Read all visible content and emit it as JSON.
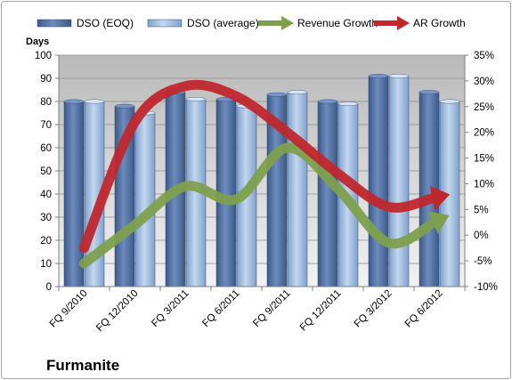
{
  "chart_data": {
    "type": "bar",
    "title": "Furmanite",
    "ylabel": "Days",
    "categories": [
      "FQ 9/2010",
      "FQ 12/2010",
      "FQ 3/2011",
      "FQ 6/2011",
      "FQ 9/2011",
      "FQ 12/2011",
      "FQ 3/2012",
      "FQ 6/2012"
    ],
    "ylim": [
      0,
      100
    ],
    "yticks": [
      "0",
      "10",
      "20",
      "30",
      "40",
      "50",
      "60",
      "70",
      "80",
      "90",
      "100"
    ],
    "y2lim": [
      -10,
      35
    ],
    "y2ticks": [
      "-10%",
      "-5%",
      "0%",
      "5%",
      "10%",
      "15%",
      "20%",
      "25%",
      "30%",
      "35%"
    ],
    "grid": true,
    "legend_position": "top",
    "series": [
      {
        "name": "DSO (EOQ)",
        "kind": "bar",
        "axis": "left",
        "color": "#4f6fa3",
        "values": [
          80,
          78,
          84,
          81,
          83,
          80,
          91,
          84
        ]
      },
      {
        "name": "DSO (average)",
        "kind": "bar",
        "axis": "left",
        "color": "#9fbde0",
        "values": [
          80,
          75,
          81,
          78,
          84,
          79,
          91,
          80
        ]
      },
      {
        "name": "Revenue Growth",
        "kind": "line",
        "axis": "right",
        "color": "#7ea04d",
        "values": [
          -5.5,
          2,
          9.5,
          7,
          17,
          9,
          -1.5,
          3
        ]
      },
      {
        "name": "AR Growth",
        "kind": "line",
        "axis": "right",
        "color": "#c0272d",
        "values": [
          -2.5,
          22,
          29,
          27,
          20,
          12,
          5.5,
          7.5
        ]
      }
    ]
  }
}
